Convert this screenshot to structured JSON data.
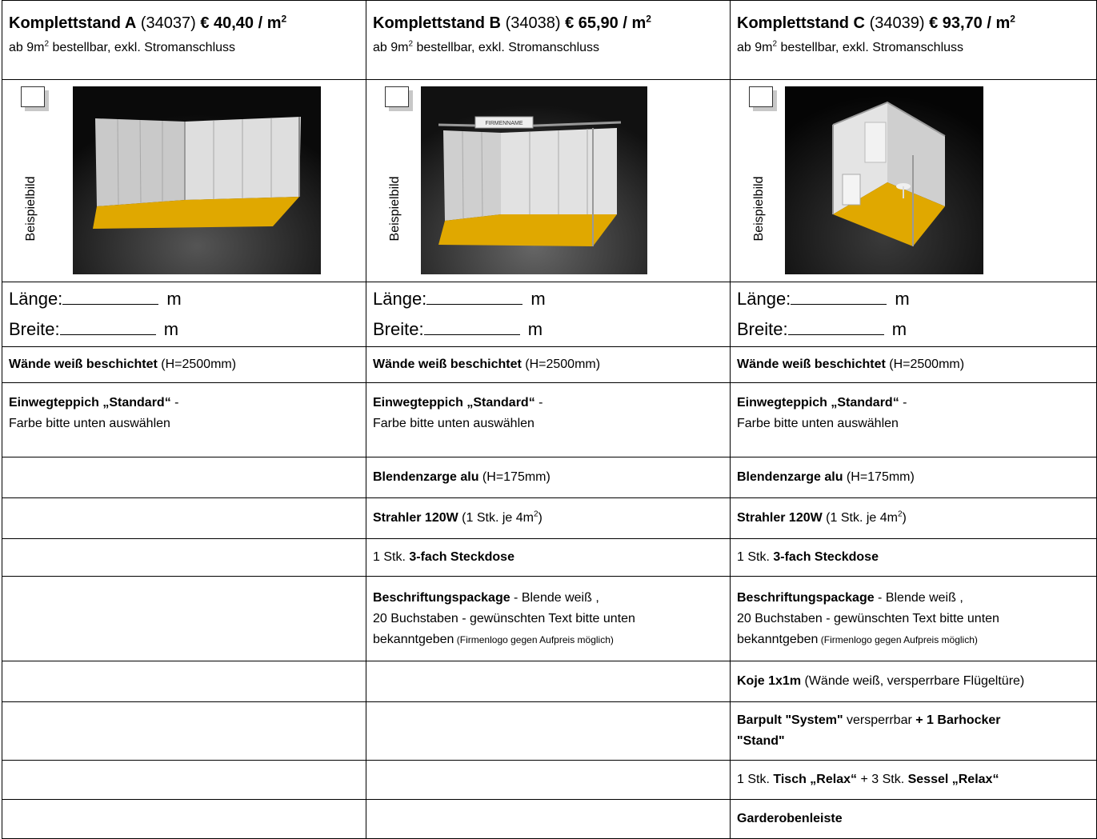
{
  "stands": [
    {
      "name": "Komplettstand A",
      "code": "(34037)",
      "price": "€ 40,40 / m",
      "price_sup": "2",
      "sub_pre": "ab 9m",
      "sub_sup": "2",
      "sub_post": " bestellbar, exkl. Stromanschluss",
      "image_label": "Beispielbild",
      "length_label": "Länge:",
      "width_label": "Breite:",
      "unit": "m",
      "walls_bold": "Wände weiß beschichtet",
      "walls_rest": " (H=2500mm)",
      "carpet_bold": "Einwegteppich „Standard“",
      "carpet_rest": " -",
      "carpet_line2": "Farbe bitte unten auswählen"
    },
    {
      "name": "Komplettstand B",
      "code": "(34038)",
      "price": "€ 65,90 / m",
      "price_sup": "2",
      "sub_pre": "ab 9m",
      "sub_sup": "2",
      "sub_post": " bestellbar, exkl. Stromanschluss",
      "image_label": "Beispielbild",
      "banner_text": "FIRMENNAME",
      "length_label": "Länge:",
      "width_label": "Breite:",
      "unit": "m",
      "walls_bold": "Wände weiß beschichtet",
      "walls_rest": " (H=2500mm)",
      "carpet_bold": "Einwegteppich „Standard“",
      "carpet_rest": " -",
      "carpet_line2": "Farbe bitte unten auswählen",
      "blende_bold": "Blendenzarge alu",
      "blende_rest": " (H=175mm)",
      "strahler_bold": "Strahler 120W",
      "strahler_pre": " (1 Stk. je 4m",
      "strahler_sup": "2",
      "strahler_post": ")",
      "steck_pre": "1 Stk. ",
      "steck_bold": "3-fach Steckdose",
      "beschr_bold": "Beschriftungspackage",
      "beschr_rest": " - Blende weiß ,",
      "beschr_line2": "20 Buchstaben - gewünschten Text bitte unten",
      "beschr_line3": "bekanntgeben",
      "beschr_small": " (Firmenlogo gegen Aufpreis möglich)"
    },
    {
      "name": "Komplettstand C",
      "code": "(34039)",
      "price": "€ 93,70 / m",
      "price_sup": "2",
      "sub_pre": "ab 9m",
      "sub_sup": "2",
      "sub_post": " bestellbar, exkl. Stromanschluss",
      "image_label": "Beispielbild",
      "length_label": "Länge:",
      "width_label": "Breite:",
      "unit": "m",
      "walls_bold": "Wände weiß beschichtet",
      "walls_rest": " (H=2500mm)",
      "carpet_bold": "Einwegteppich „Standard“",
      "carpet_rest": " -",
      "carpet_line2": "Farbe bitte unten auswählen",
      "blende_bold": "Blendenzarge alu",
      "blende_rest": " (H=175mm)",
      "strahler_bold": "Strahler 120W",
      "strahler_pre": " (1 Stk. je 4m",
      "strahler_sup": "2",
      "strahler_post": ")",
      "steck_pre": "1 Stk. ",
      "steck_bold": "3-fach Steckdose",
      "beschr_bold": "Beschriftungspackage",
      "beschr_rest": " - Blende weiß ,",
      "beschr_line2": "20 Buchstaben -  gewünschten Text bitte unten",
      "beschr_line3": "bekanntgeben",
      "beschr_small": " (Firmenlogo gegen Aufpreis möglich)",
      "koje_bold": "Koje 1x1m",
      "koje_rest": " (Wände weiß, versperrbare Flügeltüre)",
      "barpult_bold": "Barpult \"System\"",
      "barpult_rest": " versperrbar ",
      "barpult_bold2": "+ 1 Barhocker",
      "barpult_line2": "\"Stand\"",
      "tisch_pre": "1 Stk. ",
      "tisch_bold": "Tisch „Relax“",
      "tisch_mid": " + 3 Stk. ",
      "tisch_bold2": "Sessel „Relax“",
      "garde_bold": "Garderobenleiste"
    }
  ],
  "colors": {
    "carpet": "#e0a800",
    "background_dark": "#111111",
    "wall": "#d9d9d9"
  }
}
